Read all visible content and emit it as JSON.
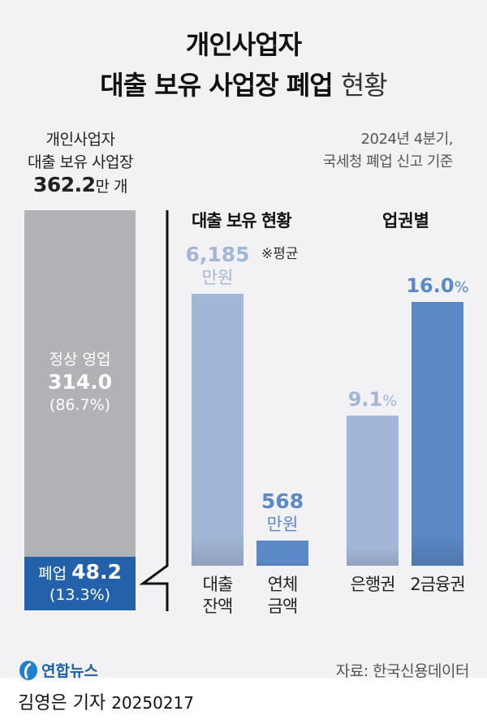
{
  "title_line1": "개인사업자",
  "title_line2": "대출 보유 사업장 폐업",
  "title_suffix": "현황",
  "note_line1": "2024년 4분기,",
  "note_line2": "국세청 폐업 신고 기준",
  "footer": {
    "logo": "연합뉴스",
    "source": "자료: 한국신용데이터",
    "byline": "김영은 기자",
    "date": "20250217"
  },
  "chart_data": [
    {
      "type": "bar",
      "stacked": true,
      "title_line1": "개인사업자",
      "title_line2": "대출 보유 사업장",
      "total": "362.2",
      "total_unit": "만 개",
      "segments": [
        {
          "name": "정상 영업",
          "value": 314.0,
          "label": "314.0",
          "pct": "(86.7%)",
          "color": "#b1b2b6"
        },
        {
          "name": "폐업",
          "value": 48.2,
          "label": "48.2",
          "pct": "(13.3%)",
          "color": "#2361aa"
        }
      ]
    },
    {
      "type": "bar",
      "title": "대출 보유 현황",
      "note": "※평균",
      "categories": [
        [
          "대출",
          "잔액"
        ],
        [
          "연체",
          "금액"
        ]
      ],
      "values": [
        6185,
        568
      ],
      "labels": [
        "6,185",
        "568"
      ],
      "unit": "만원",
      "colors": [
        "#a2b7d7",
        "#5b88c7"
      ]
    },
    {
      "type": "bar",
      "title": "업권별",
      "categories": [
        "은행권",
        "2금융권"
      ],
      "values": [
        9.1,
        16.0
      ],
      "labels": [
        "9.1",
        "16.0"
      ],
      "unit": "%",
      "colors": [
        "#a2b7d7",
        "#5b88c7"
      ]
    }
  ]
}
